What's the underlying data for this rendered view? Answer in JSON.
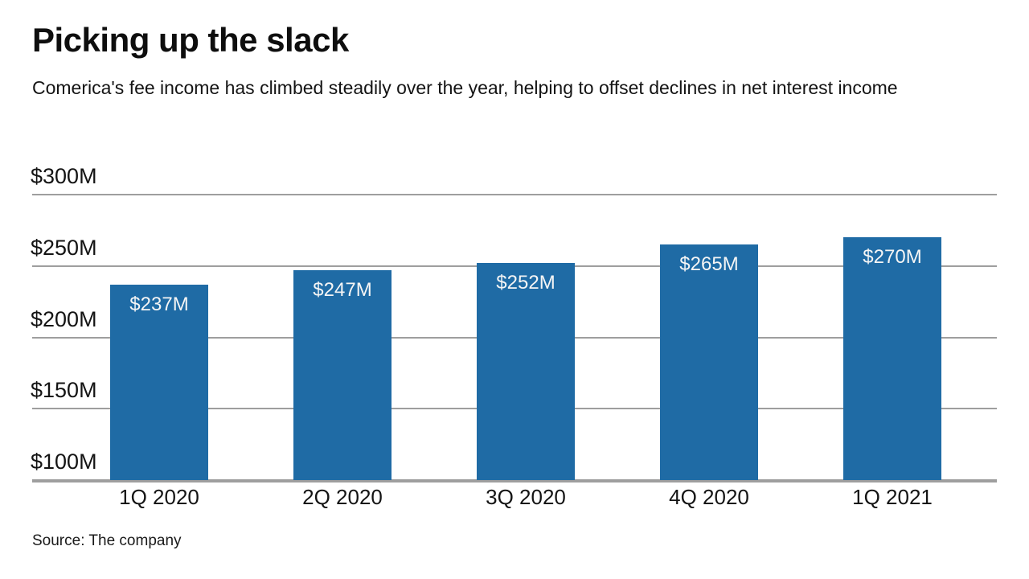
{
  "header": {
    "title": "Picking up the slack",
    "subtitle": "Comerica's fee income has climbed steadily over the year, helping to offset declines in net interest income"
  },
  "chart_data": {
    "type": "bar",
    "categories": [
      "1Q 2020",
      "2Q 2020",
      "3Q 2020",
      "4Q 2020",
      "1Q 2021"
    ],
    "values": [
      237,
      247,
      252,
      265,
      270
    ],
    "value_labels": [
      "$237M",
      "$247M",
      "$252M",
      "$265M",
      "$270M"
    ],
    "y_ticks": [
      100,
      150,
      200,
      250,
      300
    ],
    "y_tick_labels": [
      "$100M",
      "$150M",
      "$200M",
      "$250M",
      "$300M"
    ],
    "ylim": [
      100,
      300
    ],
    "xlabel": "",
    "ylabel": "",
    "grid": true,
    "legend_position": "none",
    "colors": {
      "bar": "#1f6ba5",
      "grid": "#9e9e9e",
      "axis": "#9e9e9e",
      "value_label_text": "#f5f5f5"
    }
  },
  "footer": {
    "source": "Source: The company"
  }
}
